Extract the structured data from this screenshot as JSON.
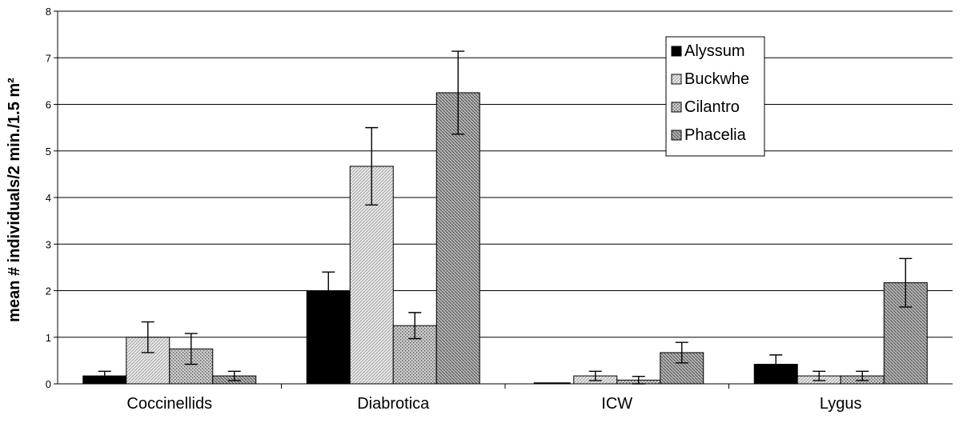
{
  "chart_data": {
    "type": "bar",
    "title": "",
    "xlabel": "",
    "ylabel": "mean # individuals/2 min./1.5 m²",
    "ylim": [
      0,
      8
    ],
    "yticks": [
      0,
      1,
      2,
      3,
      4,
      5,
      6,
      7,
      8
    ],
    "grid": true,
    "legend_position": "top-right",
    "categories": [
      "Coccinellids",
      "Diabrotica",
      "ICW",
      "Lygus"
    ],
    "series": [
      {
        "name": "Alyssum",
        "values": [
          0.17,
          2.0,
          0.0,
          0.42
        ],
        "errors": [
          0.1,
          0.4,
          0.0,
          0.2
        ],
        "color": "#000000",
        "pattern": "solid"
      },
      {
        "name": "Buckwhe",
        "values": [
          1.0,
          4.67,
          0.17,
          0.17
        ],
        "errors": [
          0.33,
          0.83,
          0.1,
          0.1
        ],
        "color": "#d9d9d9",
        "pattern": "light"
      },
      {
        "name": "Cilantro",
        "values": [
          0.75,
          1.25,
          0.08,
          0.17
        ],
        "errors": [
          0.33,
          0.28,
          0.08,
          0.1
        ],
        "color": "#bfbfbf",
        "pattern": "dots"
      },
      {
        "name": "Phacelia",
        "values": [
          0.17,
          6.25,
          0.67,
          2.17
        ],
        "errors": [
          0.1,
          0.89,
          0.22,
          0.52
        ],
        "color": "#a6a6a6",
        "pattern": "diag"
      }
    ]
  }
}
